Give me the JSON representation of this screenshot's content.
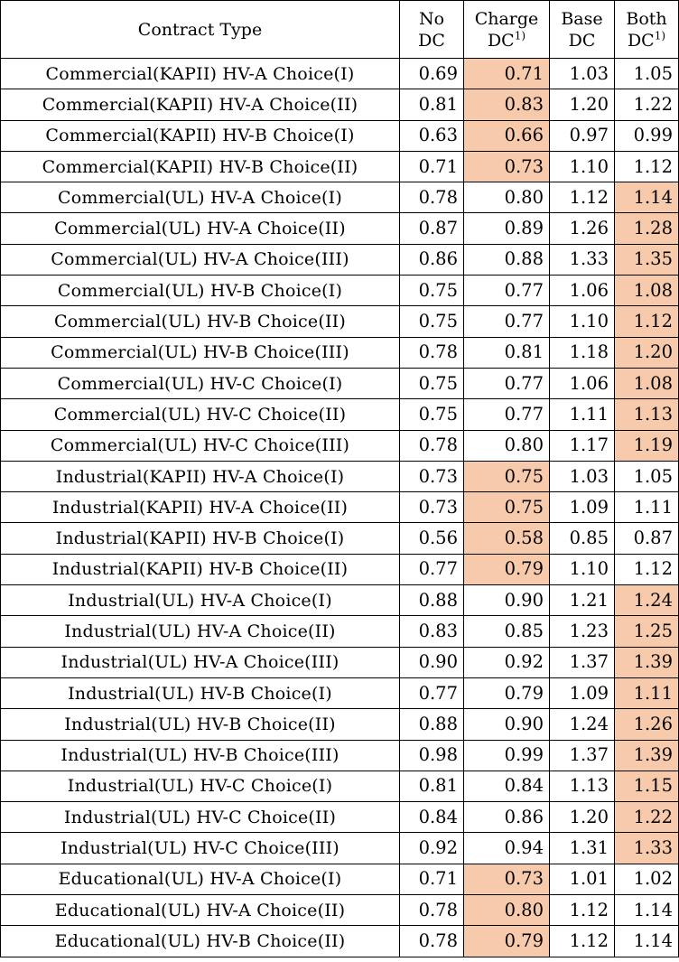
{
  "header": {
    "contract_type": "Contract Type",
    "no_dc": [
      "No",
      "DC"
    ],
    "charge_dc": [
      "Charge",
      "DC"
    ],
    "charge_dc_note": "1)",
    "base_dc": [
      "Base",
      "DC"
    ],
    "both_dc": [
      "Both",
      "DC"
    ],
    "both_dc_note": "1)"
  },
  "highlight_color": "#f7caac",
  "rows": [
    {
      "type": "Commercial(KAPII) HV-A Choice(I)",
      "no_dc": "0.69",
      "charge_dc": "0.71",
      "base_dc": "1.03",
      "both_dc": "1.05",
      "highlight": "charge_dc"
    },
    {
      "type": "Commercial(KAPII) HV-A Choice(II)",
      "no_dc": "0.81",
      "charge_dc": "0.83",
      "base_dc": "1.20",
      "both_dc": "1.22",
      "highlight": "charge_dc"
    },
    {
      "type": "Commercial(KAPII) HV-B Choice(I)",
      "no_dc": "0.63",
      "charge_dc": "0.66",
      "base_dc": "0.97",
      "both_dc": "0.99",
      "highlight": "charge_dc"
    },
    {
      "type": "Commercial(KAPII) HV-B Choice(II)",
      "no_dc": "0.71",
      "charge_dc": "0.73",
      "base_dc": "1.10",
      "both_dc": "1.12",
      "highlight": "charge_dc"
    },
    {
      "type": "Commercial(UL) HV-A Choice(I)",
      "no_dc": "0.78",
      "charge_dc": "0.80",
      "base_dc": "1.12",
      "both_dc": "1.14",
      "highlight": "both_dc"
    },
    {
      "type": "Commercial(UL) HV-A Choice(II)",
      "no_dc": "0.87",
      "charge_dc": "0.89",
      "base_dc": "1.26",
      "both_dc": "1.28",
      "highlight": "both_dc"
    },
    {
      "type": "Commercial(UL) HV-A Choice(III)",
      "no_dc": "0.86",
      "charge_dc": "0.88",
      "base_dc": "1.33",
      "both_dc": "1.35",
      "highlight": "both_dc"
    },
    {
      "type": "Commercial(UL) HV-B Choice(I)",
      "no_dc": "0.75",
      "charge_dc": "0.77",
      "base_dc": "1.06",
      "both_dc": "1.08",
      "highlight": "both_dc"
    },
    {
      "type": "Commercial(UL) HV-B Choice(II)",
      "no_dc": "0.75",
      "charge_dc": "0.77",
      "base_dc": "1.10",
      "both_dc": "1.12",
      "highlight": "both_dc"
    },
    {
      "type": "Commercial(UL) HV-B Choice(III)",
      "no_dc": "0.78",
      "charge_dc": "0.81",
      "base_dc": "1.18",
      "both_dc": "1.20",
      "highlight": "both_dc"
    },
    {
      "type": "Commercial(UL) HV-C Choice(I)",
      "no_dc": "0.75",
      "charge_dc": "0.77",
      "base_dc": "1.06",
      "both_dc": "1.08",
      "highlight": "both_dc"
    },
    {
      "type": "Commercial(UL) HV-C Choice(II)",
      "no_dc": "0.75",
      "charge_dc": "0.77",
      "base_dc": "1.11",
      "both_dc": "1.13",
      "highlight": "both_dc"
    },
    {
      "type": "Commercial(UL) HV-C Choice(III)",
      "no_dc": "0.78",
      "charge_dc": "0.80",
      "base_dc": "1.17",
      "both_dc": "1.19",
      "highlight": "both_dc"
    },
    {
      "type": "Industrial(KAPII) HV-A Choice(I)",
      "no_dc": "0.73",
      "charge_dc": "0.75",
      "base_dc": "1.03",
      "both_dc": "1.05",
      "highlight": "charge_dc"
    },
    {
      "type": "Industrial(KAPII) HV-A Choice(II)",
      "no_dc": "0.73",
      "charge_dc": "0.75",
      "base_dc": "1.09",
      "both_dc": "1.11",
      "highlight": "charge_dc"
    },
    {
      "type": "Industrial(KAPII) HV-B Choice(I)",
      "no_dc": "0.56",
      "charge_dc": "0.58",
      "base_dc": "0.85",
      "both_dc": "0.87",
      "highlight": "charge_dc"
    },
    {
      "type": "Industrial(KAPII) HV-B Choice(II)",
      "no_dc": "0.77",
      "charge_dc": "0.79",
      "base_dc": "1.10",
      "both_dc": "1.12",
      "highlight": "charge_dc"
    },
    {
      "type": "Industrial(UL) HV-A Choice(I)",
      "no_dc": "0.88",
      "charge_dc": "0.90",
      "base_dc": "1.21",
      "both_dc": "1.24",
      "highlight": "both_dc"
    },
    {
      "type": "Industrial(UL) HV-A Choice(II)",
      "no_dc": "0.83",
      "charge_dc": "0.85",
      "base_dc": "1.23",
      "both_dc": "1.25",
      "highlight": "both_dc"
    },
    {
      "type": "Industrial(UL) HV-A Choice(III)",
      "no_dc": "0.90",
      "charge_dc": "0.92",
      "base_dc": "1.37",
      "both_dc": "1.39",
      "highlight": "both_dc"
    },
    {
      "type": "Industrial(UL) HV-B Choice(I)",
      "no_dc": "0.77",
      "charge_dc": "0.79",
      "base_dc": "1.09",
      "both_dc": "1.11",
      "highlight": "both_dc"
    },
    {
      "type": "Industrial(UL) HV-B Choice(II)",
      "no_dc": "0.88",
      "charge_dc": "0.90",
      "base_dc": "1.24",
      "both_dc": "1.26",
      "highlight": "both_dc"
    },
    {
      "type": "Industrial(UL) HV-B Choice(III)",
      "no_dc": "0.98",
      "charge_dc": "0.99",
      "base_dc": "1.37",
      "both_dc": "1.39",
      "highlight": "both_dc"
    },
    {
      "type": "Industrial(UL) HV-C Choice(I)",
      "no_dc": "0.81",
      "charge_dc": "0.84",
      "base_dc": "1.13",
      "both_dc": "1.15",
      "highlight": "both_dc"
    },
    {
      "type": "Industrial(UL) HV-C Choice(II)",
      "no_dc": "0.84",
      "charge_dc": "0.86",
      "base_dc": "1.20",
      "both_dc": "1.22",
      "highlight": "both_dc"
    },
    {
      "type": "Industrial(UL) HV-C Choice(III)",
      "no_dc": "0.92",
      "charge_dc": "0.94",
      "base_dc": "1.31",
      "both_dc": "1.33",
      "highlight": "both_dc"
    },
    {
      "type": "Educational(UL) HV-A Choice(I)",
      "no_dc": "0.71",
      "charge_dc": "0.73",
      "base_dc": "1.01",
      "both_dc": "1.02",
      "highlight": "charge_dc"
    },
    {
      "type": "Educational(UL) HV-A Choice(II)",
      "no_dc": "0.78",
      "charge_dc": "0.80",
      "base_dc": "1.12",
      "both_dc": "1.14",
      "highlight": "charge_dc"
    },
    {
      "type": "Educational(UL) HV-B Choice(II)",
      "no_dc": "0.78",
      "charge_dc": "0.79",
      "base_dc": "1.12",
      "both_dc": "1.14",
      "highlight": "charge_dc"
    }
  ]
}
